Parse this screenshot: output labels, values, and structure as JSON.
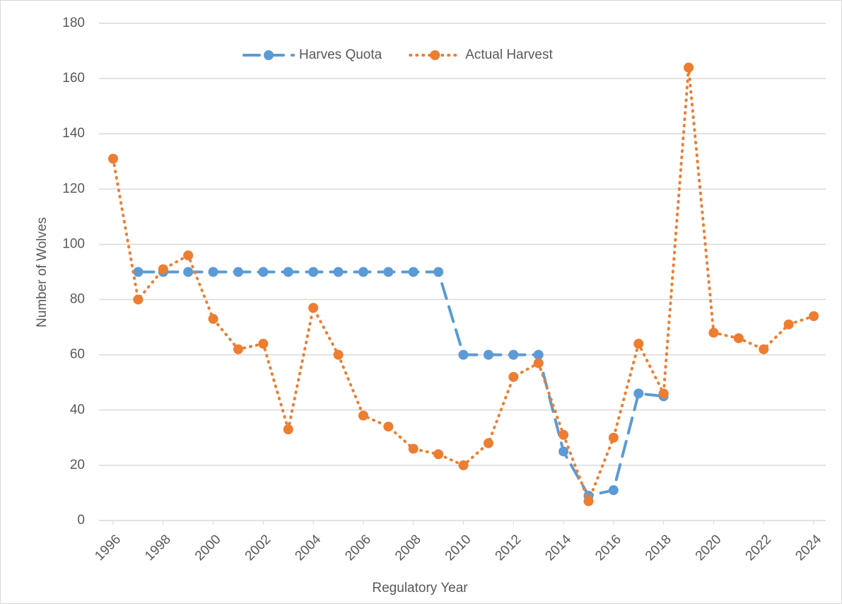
{
  "chart_data": {
    "type": "line",
    "x_label": "Regulatory Year",
    "y_label": "Number of Wolves",
    "x": [
      1996,
      1997,
      1998,
      1999,
      2000,
      2001,
      2002,
      2003,
      2004,
      2005,
      2006,
      2007,
      2008,
      2009,
      2010,
      2011,
      2012,
      2013,
      2014,
      2015,
      2016,
      2017,
      2018,
      2019,
      2020,
      2021,
      2022,
      2023,
      2024
    ],
    "series": [
      {
        "name": "Harves Quota",
        "color": "#5b9bd5",
        "style": "dashed",
        "values": [
          null,
          90,
          90,
          90,
          90,
          90,
          90,
          90,
          90,
          90,
          90,
          90,
          90,
          90,
          60,
          60,
          60,
          60,
          25,
          9,
          11,
          46,
          45,
          null,
          null,
          null,
          null,
          null,
          null
        ]
      },
      {
        "name": "Actual Harvest",
        "color": "#ed7d31",
        "style": "dotted",
        "values": [
          131,
          80,
          91,
          96,
          73,
          62,
          64,
          33,
          77,
          60,
          38,
          34,
          26,
          24,
          20,
          28,
          52,
          57,
          31,
          7,
          30,
          64,
          46,
          164,
          68,
          66,
          62,
          71,
          74
        ]
      }
    ],
    "xlim": [
      1996,
      2024
    ],
    "xticks": [
      1996,
      1998,
      2000,
      2002,
      2004,
      2006,
      2008,
      2010,
      2012,
      2014,
      2016,
      2018,
      2020,
      2022,
      2024
    ],
    "ylim": [
      0,
      180
    ],
    "yticks": [
      0,
      20,
      40,
      60,
      80,
      100,
      120,
      140,
      160,
      180
    ],
    "grid": true,
    "legend": "top"
  }
}
